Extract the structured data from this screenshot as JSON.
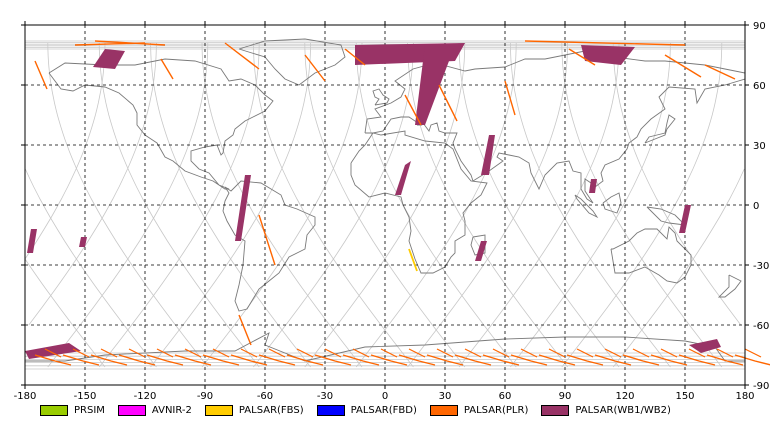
{
  "map": {
    "lon_ticks": [
      "-180",
      "-150",
      "-120",
      "-90",
      "-60",
      "-30",
      "0",
      "30",
      "60",
      "90",
      "120",
      "150",
      "180"
    ],
    "lat_ticks": [
      "90",
      "60",
      "30",
      "0",
      "-30",
      "-60",
      "-90"
    ],
    "lon_range": [
      -180,
      180
    ],
    "lat_range": [
      -90,
      90
    ],
    "colors": {
      "frame": "#000000",
      "grid": "#000000",
      "coast": "#7a7a7a",
      "orbit": "#c8c8c8",
      "plr": "#ff6600",
      "wb": "#993366",
      "fbs": "#ffcc00"
    }
  },
  "legend": [
    {
      "label": "PRSIM",
      "color": "#99cc00"
    },
    {
      "label": "AVNIR-2",
      "color": "#ff00ff"
    },
    {
      "label": "PALSAR(FBS)",
      "color": "#ffcc00"
    },
    {
      "label": "PALSAR(FBD)",
      "color": "#0000ff"
    },
    {
      "label": "PALSAR(PLR)",
      "color": "#ff6600"
    },
    {
      "label": "PALSAR(WB1/WB2)",
      "color": "#993366"
    }
  ]
}
